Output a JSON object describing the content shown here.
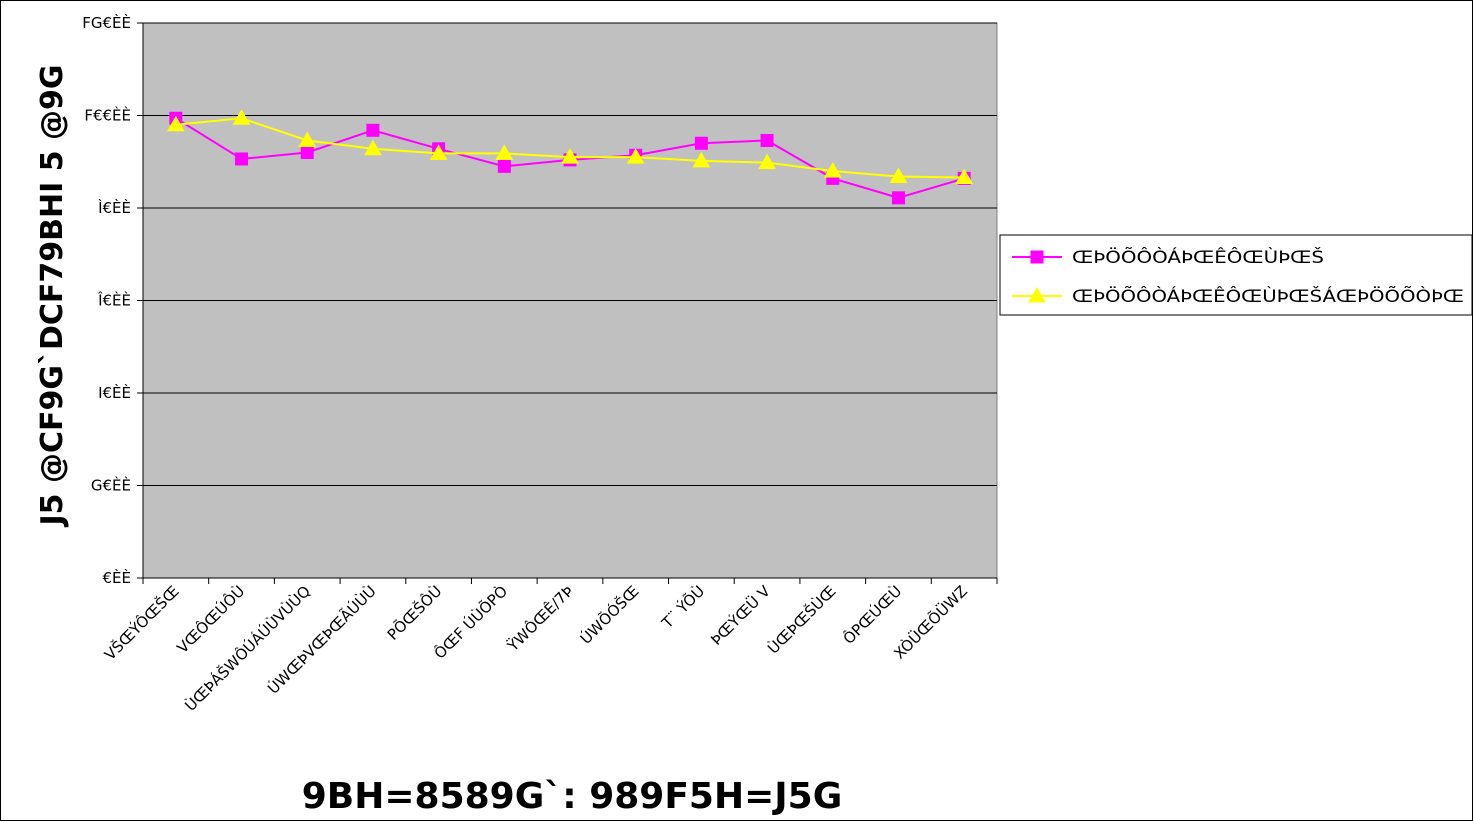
{
  "chart_data": {
    "type": "line",
    "title": "",
    "ylabel": "J5 @CF9G`DCF79BHI 5 @9G",
    "xlabel": "9BH=8589G`: 989F5H=J5G",
    "ylim": [
      0,
      600
    ],
    "ytick_labels": [
      "€ÈÈ",
      "G€ÈÈ",
      "I€ÈÈ",
      "Î€ÈÈ",
      "Ì€ÈÈ",
      "F€€ÈÈ",
      "FG€ÈÈ"
    ],
    "ytick_values": [
      0,
      100,
      200,
      300,
      400,
      500,
      600
    ],
    "grid": true,
    "legend_placement": "right",
    "categories": [
      "VŠŒÝÔŒŠŒ",
      "VŒÔŒÚÔÙ",
      "ÙŒÞÁŠWÔÚÁÚÙVÙÙQ",
      "ÚWŒÞVŒÞŒÃÚÙÙ",
      "PÕŒŠÔÙ",
      "ÔŒF ÚÙÕPÒ",
      "ŸWÔŒÊ/7Þ",
      "ÚWÕÓŠŒ",
      "T¨ ÝÕÙ",
      "ÞŒÝŒÜ V",
      "ÙŒÞŒŠÙŒ",
      "ÔPŒÚŒÙ",
      "XÒÜŒÕÜWZ"
    ],
    "series": [
      {
        "name": "ŒÞÖÕÔÒÁÞŒÊÔŒÙÞŒŠ",
        "color": "#FF00FF",
        "marker": "square",
        "values": [
          497,
          453,
          460,
          484,
          464,
          445,
          452,
          457,
          470,
          473,
          432,
          411,
          432
        ]
      },
      {
        "name": "ŒÞÖÕÔÒÁÞŒÊÔŒÙÞŒŠÁŒÞÖÕÕÒÞŒ",
        "color": "#FFFF00",
        "marker": "triangle",
        "values": [
          490,
          497,
          473,
          464,
          459,
          459,
          455,
          455,
          451,
          449,
          440,
          434,
          433
        ]
      }
    ]
  }
}
